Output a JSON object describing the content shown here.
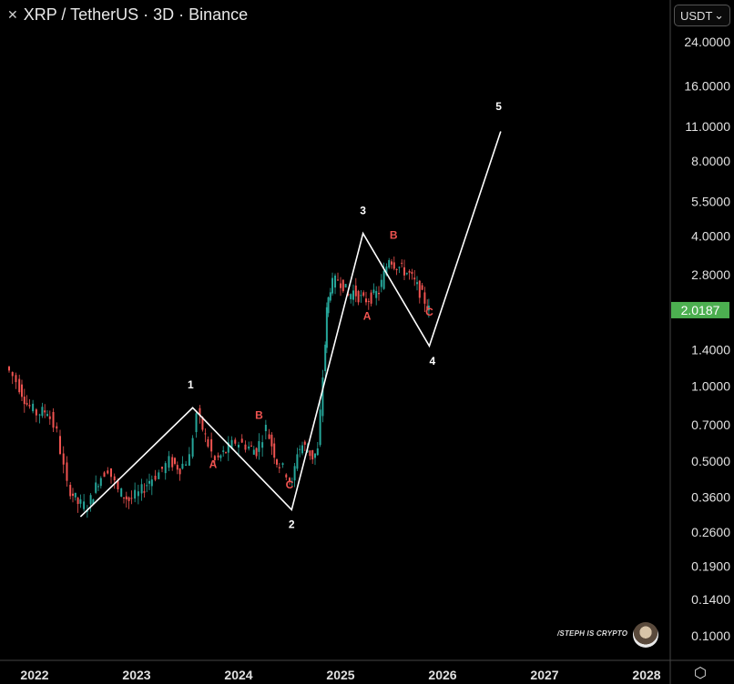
{
  "header": {
    "title": "XRP / TetherUS · 3D · Binance",
    "symbol_icon": "xrp-logo-icon"
  },
  "currency_selector": {
    "value": "USDT",
    "icon": "chevron-down-icon"
  },
  "watermark": {
    "text": "/STEPH IS CRYPTO",
    "avatar": "avatar-image"
  },
  "settings_icon": "gear-icon",
  "colors": {
    "up": "#26a69a",
    "down": "#ef5350",
    "price_badge": "#4caf50",
    "wave_line": "#ffffff",
    "abc_label": "#ef5350"
  },
  "chart_data": {
    "type": "line",
    "title": "XRP / TetherUS · 3D · Binance",
    "y_scale": "log",
    "y_ticks": [
      "24.0000",
      "16.0000",
      "11.0000",
      "8.0000",
      "5.5000",
      "4.0000",
      "2.8000",
      "1.4000",
      "1.0000",
      "0.7000",
      "0.5000",
      "0.3600",
      "0.2600",
      "0.1900",
      "0.1400",
      "0.1000"
    ],
    "x_ticks": [
      "2022",
      "2023",
      "2024",
      "2025",
      "2026",
      "2027",
      "2028"
    ],
    "current_price": "2.0187",
    "price_series": {
      "name": "",
      "x": [
        2021.75,
        2021.85,
        2021.95,
        2022.05,
        2022.15,
        2022.25,
        2022.35,
        2022.45,
        2022.55,
        2022.65,
        2022.75,
        2022.85,
        2022.95,
        2023.05,
        2023.15,
        2023.25,
        2023.35,
        2023.45,
        2023.55,
        2023.62,
        2023.7,
        2023.8,
        2023.9,
        2024.0,
        2024.1,
        2024.2,
        2024.3,
        2024.4,
        2024.5,
        2024.55,
        2024.6,
        2024.65,
        2024.7,
        2024.75,
        2024.8,
        2024.85,
        2024.88,
        2024.92,
        2025.0,
        2025.05,
        2025.1,
        2025.15,
        2025.2,
        2025.25,
        2025.3,
        2025.35,
        2025.4,
        2025.45,
        2025.5,
        2025.55,
        2025.6,
        2025.65,
        2025.7,
        2025.75,
        2025.8,
        2025.85,
        2025.88
      ],
      "y": [
        1.2,
        1.05,
        0.85,
        0.78,
        0.8,
        0.65,
        0.4,
        0.34,
        0.33,
        0.42,
        0.47,
        0.38,
        0.35,
        0.37,
        0.42,
        0.45,
        0.5,
        0.47,
        0.52,
        0.78,
        0.63,
        0.5,
        0.55,
        0.6,
        0.58,
        0.55,
        0.68,
        0.5,
        0.45,
        0.4,
        0.55,
        0.58,
        0.56,
        0.52,
        0.55,
        1.1,
        2.0,
        2.5,
        2.7,
        2.55,
        2.3,
        2.4,
        2.3,
        2.2,
        2.25,
        2.3,
        2.4,
        2.8,
        3.3,
        3.1,
        3.0,
        2.9,
        2.8,
        2.6,
        2.4,
        2.2,
        2.0187
      ]
    },
    "wave_line": {
      "name": "",
      "x": [
        2022.45,
        2023.55,
        2024.52,
        2025.22,
        2025.87,
        2026.57
      ],
      "y": [
        0.3,
        0.82,
        0.32,
        4.1,
        1.45,
        10.5
      ]
    },
    "labels": [
      {
        "text": "1",
        "x": 2023.53,
        "y": 0.98,
        "kind": "wave"
      },
      {
        "text": "2",
        "x": 2024.52,
        "y": 0.27,
        "kind": "wave"
      },
      {
        "text": "3",
        "x": 2025.22,
        "y": 4.9,
        "kind": "wave"
      },
      {
        "text": "4",
        "x": 2025.9,
        "y": 1.22,
        "kind": "wave"
      },
      {
        "text": "5",
        "x": 2026.55,
        "y": 12.8,
        "kind": "wave"
      },
      {
        "text": "A",
        "x": 2023.75,
        "y": 0.47,
        "kind": "abc"
      },
      {
        "text": "B",
        "x": 2024.2,
        "y": 0.74,
        "kind": "abc"
      },
      {
        "text": "C",
        "x": 2024.5,
        "y": 0.39,
        "kind": "abc"
      },
      {
        "text": "A",
        "x": 2025.26,
        "y": 1.85,
        "kind": "abc"
      },
      {
        "text": "B",
        "x": 2025.52,
        "y": 3.9,
        "kind": "abc"
      },
      {
        "text": "C",
        "x": 2025.87,
        "y": 1.92,
        "kind": "abc"
      }
    ]
  }
}
